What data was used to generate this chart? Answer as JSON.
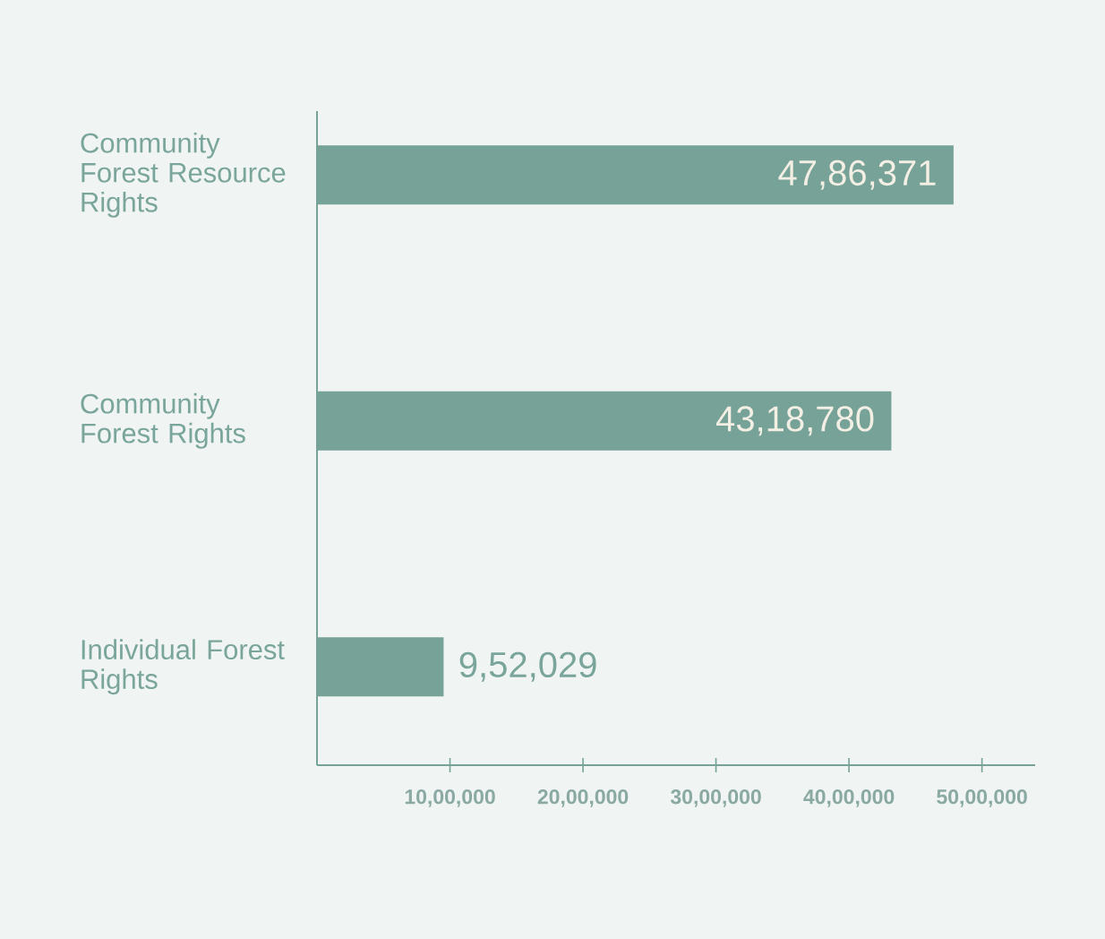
{
  "chart_data": {
    "type": "bar",
    "orientation": "horizontal",
    "categories": [
      "Community Forest Resource Rights",
      "Community Forest Rights",
      "Individual Forest Rights"
    ],
    "values": [
      4786371,
      4318780,
      952029
    ],
    "color": "#77a298",
    "data_labels": true,
    "value_labels": [
      "47,86,371",
      "43,18,780",
      "9,52,029"
    ],
    "xlim": [
      0,
      5400000
    ],
    "xticks": [
      {
        "value": 1000000,
        "label": "10,00,000"
      },
      {
        "value": 2000000,
        "label": "20,00,000"
      },
      {
        "value": 3000000,
        "label": "30,00,000"
      },
      {
        "value": 4000000,
        "label": "40,00,000"
      },
      {
        "value": 5000000,
        "label": "50,00,000"
      }
    ],
    "grid": false
  }
}
